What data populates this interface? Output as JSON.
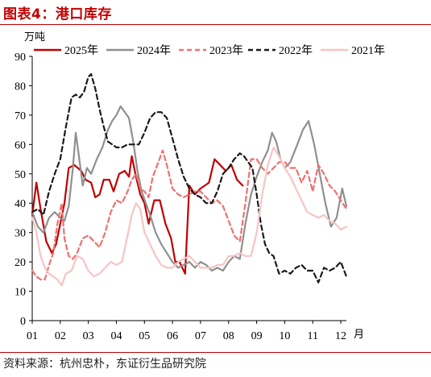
{
  "title": "图表4：港口库存",
  "source": "资料来源：杭州忠朴，东证衍生品研究院",
  "chart_data": {
    "type": "line",
    "unit_label": "万吨",
    "xlabel_unit": "月",
    "ylim": [
      0,
      90
    ],
    "yticks": [
      0,
      10,
      20,
      30,
      40,
      50,
      60,
      70,
      80,
      90
    ],
    "xticks": [
      "01",
      "02",
      "03",
      "04",
      "05",
      "06",
      "07",
      "08",
      "09",
      "10",
      "11",
      "12"
    ],
    "xlim": [
      1,
      12.2
    ],
    "grid": false,
    "legend": "top",
    "series": [
      {
        "name": "2025年",
        "color": "#c00000",
        "dash": "solid",
        "x": [
          1.0,
          1.15,
          1.3,
          1.5,
          1.7,
          1.85,
          2.0,
          2.15,
          2.3,
          2.5,
          2.75,
          2.9,
          3.1,
          3.25,
          3.4,
          3.55,
          3.75,
          3.9,
          4.1,
          4.3,
          4.45,
          4.55,
          4.7,
          4.85,
          5.0,
          5.15,
          5.35,
          5.55,
          5.75,
          5.95,
          6.1,
          6.25,
          6.45,
          6.6,
          6.8,
          7.0,
          7.15,
          7.3,
          7.5,
          7.7,
          7.9,
          8.1,
          8.3,
          8.5
        ],
        "y": [
          36,
          47,
          38,
          27,
          23,
          26,
          33,
          40,
          52,
          53,
          51,
          48,
          47,
          42,
          43,
          48,
          48,
          44,
          50,
          51,
          49,
          56,
          49,
          43,
          40,
          33,
          41,
          41,
          33,
          28,
          20,
          20,
          16,
          46,
          43,
          45,
          46,
          47,
          55,
          53,
          51,
          53,
          48,
          46
        ]
      },
      {
        "name": "2024年",
        "color": "#909090",
        "dash": "solid",
        "x": [
          1.0,
          1.2,
          1.4,
          1.6,
          1.8,
          2.0,
          2.15,
          2.3,
          2.45,
          2.55,
          2.65,
          2.8,
          2.95,
          3.1,
          3.3,
          3.5,
          3.7,
          3.85,
          4.0,
          4.15,
          4.3,
          4.45,
          4.6,
          4.75,
          4.9,
          5.05,
          5.2,
          5.4,
          5.6,
          5.8,
          6.0,
          6.2,
          6.4,
          6.6,
          6.8,
          7.0,
          7.2,
          7.4,
          7.6,
          7.8,
          8.0,
          8.2,
          8.4,
          8.6,
          8.8,
          9.0,
          9.2,
          9.4,
          9.55,
          9.7,
          9.85,
          10.0,
          10.2,
          10.45,
          10.65,
          10.85,
          11.05,
          11.25,
          11.45,
          11.65,
          11.85,
          12.05,
          12.2
        ],
        "y": [
          37,
          32,
          30,
          35,
          37,
          35,
          34,
          39,
          52,
          64,
          57,
          46,
          52,
          50,
          55,
          59,
          65,
          68,
          70,
          73,
          71,
          69,
          61,
          51,
          44,
          40,
          36,
          30,
          26,
          23,
          20,
          18,
          19,
          20,
          18,
          20,
          19,
          17,
          18,
          17,
          20,
          22,
          21,
          33,
          43,
          49,
          54,
          58,
          64,
          61,
          55,
          52,
          54,
          60,
          65,
          68,
          60,
          50,
          40,
          32,
          35,
          45,
          39
        ]
      },
      {
        "name": "2023年",
        "color": "#f07070",
        "dash": "dashed",
        "x": [
          1.0,
          1.15,
          1.3,
          1.45,
          1.6,
          1.75,
          1.9,
          2.05,
          2.15,
          2.3,
          2.45,
          2.6,
          2.8,
          3.0,
          3.2,
          3.4,
          3.6,
          3.8,
          4.0,
          4.2,
          4.4,
          4.55,
          4.7,
          4.85,
          5.0,
          5.15,
          5.3,
          5.5,
          5.65,
          5.8,
          6.0,
          6.2,
          6.4,
          6.6,
          6.8,
          7.0,
          7.2,
          7.4,
          7.6,
          7.8,
          8.0,
          8.2,
          8.4,
          8.6,
          8.8,
          9.0,
          9.2,
          9.4,
          9.6,
          9.8,
          10.0,
          10.2,
          10.4,
          10.6,
          10.8,
          11.0,
          11.2,
          11.4,
          11.6,
          11.8,
          12.0,
          12.2
        ],
        "y": [
          17,
          15,
          14,
          14,
          19,
          23,
          33,
          40,
          28,
          22,
          21,
          23,
          28,
          29,
          27,
          25,
          30,
          37,
          41,
          40,
          44,
          48,
          50,
          45,
          44,
          42,
          49,
          54,
          58,
          53,
          45,
          43,
          42,
          43,
          44,
          44,
          42,
          40,
          41,
          39,
          34,
          29,
          27,
          40,
          55,
          55,
          52,
          50,
          52,
          54,
          54,
          52,
          52,
          47,
          51,
          44,
          53,
          50,
          46,
          44,
          41,
          38
        ]
      },
      {
        "name": "2022年",
        "color": "#1a1a1a",
        "dash": "dashed",
        "x": [
          1.0,
          1.2,
          1.4,
          1.6,
          1.8,
          2.0,
          2.2,
          2.4,
          2.55,
          2.7,
          2.85,
          3.0,
          3.1,
          3.25,
          3.4,
          3.55,
          3.7,
          3.85,
          4.0,
          4.2,
          4.4,
          4.6,
          4.8,
          5.0,
          5.2,
          5.4,
          5.6,
          5.8,
          6.0,
          6.2,
          6.4,
          6.6,
          6.8,
          7.0,
          7.2,
          7.4,
          7.6,
          7.8,
          8.0,
          8.2,
          8.4,
          8.55,
          8.7,
          8.85,
          9.0,
          9.15,
          9.3,
          9.45,
          9.6,
          9.8,
          10.0,
          10.2,
          10.4,
          10.6,
          10.8,
          11.0,
          11.2,
          11.4,
          11.6,
          11.8,
          12.0,
          12.2
        ],
        "y": [
          37,
          38,
          36,
          44,
          50,
          55,
          66,
          76,
          77,
          76,
          78,
          83,
          84,
          79,
          72,
          66,
          61,
          60,
          59,
          59,
          60,
          60,
          60,
          64,
          69,
          71,
          71,
          69,
          62,
          55,
          49,
          45,
          43,
          42,
          40,
          40,
          44,
          50,
          52,
          55,
          57,
          56,
          54,
          52,
          43,
          33,
          26,
          23,
          22,
          16,
          17,
          16,
          18,
          19,
          17,
          17,
          13,
          18,
          17,
          18,
          20,
          15
        ]
      },
      {
        "name": "2021年",
        "color": "#f7c4c4",
        "dash": "solid",
        "x": [
          1.0,
          1.15,
          1.3,
          1.45,
          1.6,
          1.75,
          1.9,
          2.05,
          2.2,
          2.4,
          2.6,
          2.8,
          3.0,
          3.2,
          3.4,
          3.6,
          3.8,
          4.0,
          4.2,
          4.4,
          4.55,
          4.7,
          4.85,
          5.0,
          5.2,
          5.4,
          5.6,
          5.8,
          6.0,
          6.2,
          6.4,
          6.6,
          6.8,
          7.0,
          7.2,
          7.4,
          7.6,
          7.8,
          8.0,
          8.2,
          8.4,
          8.6,
          8.8,
          9.0,
          9.2,
          9.4,
          9.6,
          9.8,
          10.0,
          10.2,
          10.4,
          10.6,
          10.8,
          11.0,
          11.2,
          11.4,
          11.6,
          11.8,
          12.0,
          12.2
        ],
        "y": [
          35,
          30,
          22,
          18,
          16,
          15,
          14,
          12,
          16,
          17,
          22,
          21,
          17,
          15,
          16,
          18,
          20,
          19,
          20,
          29,
          36,
          40,
          38,
          30,
          26,
          22,
          19,
          18,
          18,
          20,
          21,
          22,
          20,
          18,
          18,
          18,
          19,
          19,
          22,
          22,
          23,
          22,
          22,
          30,
          43,
          53,
          59,
          56,
          52,
          49,
          45,
          41,
          37,
          36,
          35,
          36,
          34,
          33,
          31,
          32
        ]
      }
    ]
  }
}
